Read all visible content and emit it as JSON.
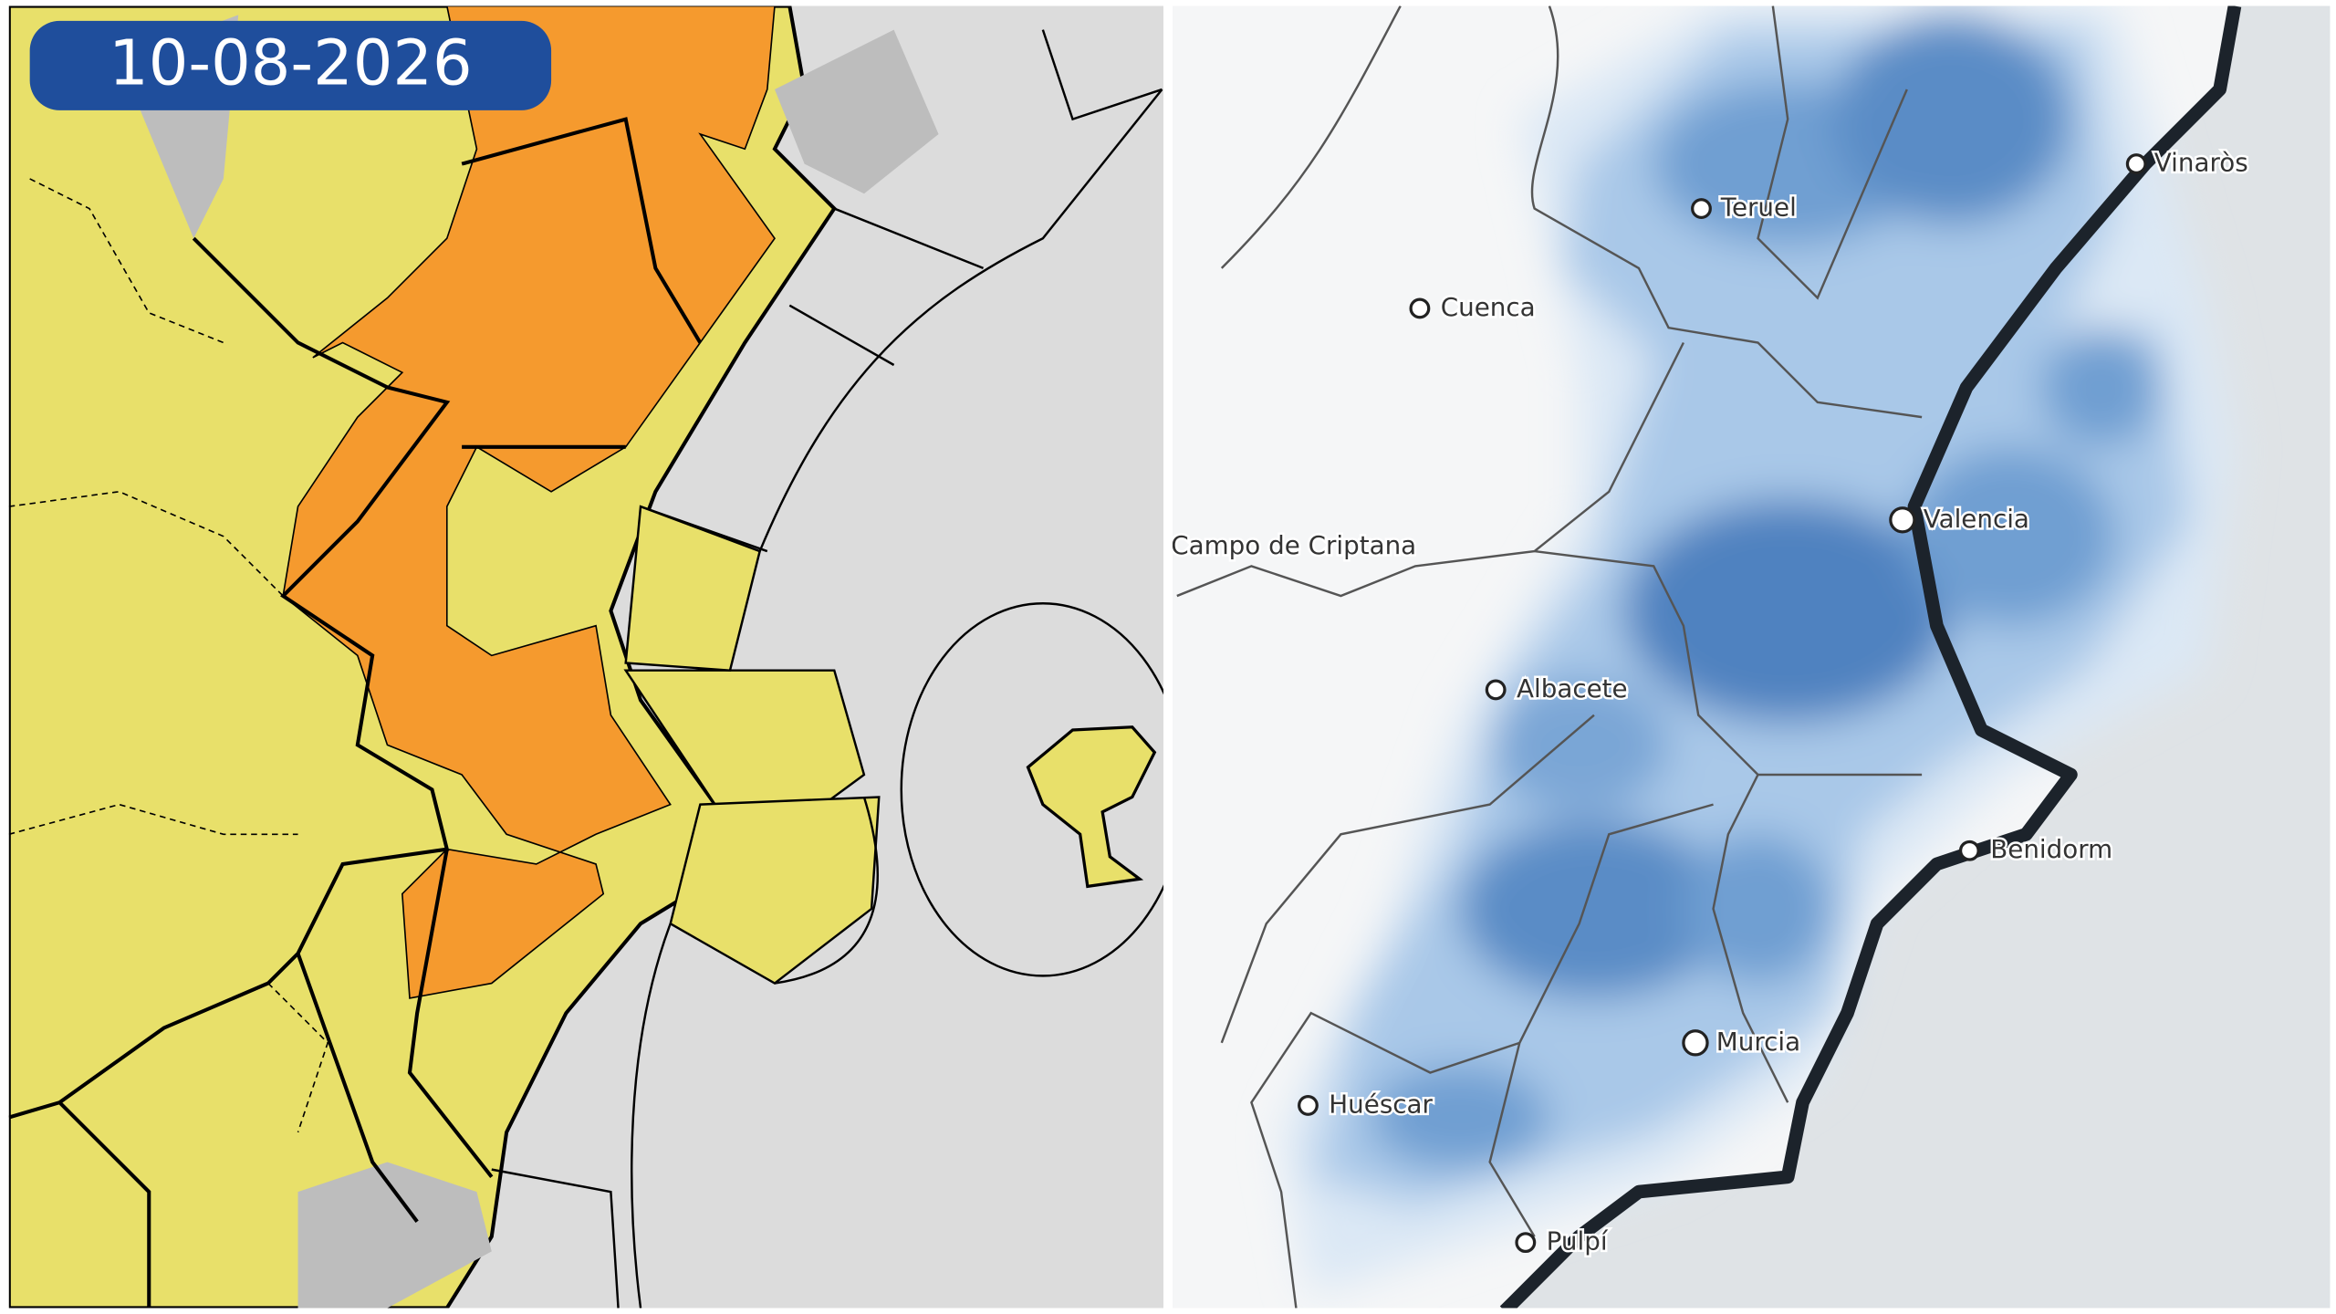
{
  "badge": {
    "date": "10-08-2026"
  },
  "right_map": {
    "cities": [
      {
        "label": "Vinaròs"
      },
      {
        "label": "Teruel"
      },
      {
        "label": "Cuenca"
      },
      {
        "label": "Campo de Criptana"
      },
      {
        "label": "Valencia"
      },
      {
        "label": "Albacete"
      },
      {
        "label": "Benidorm"
      },
      {
        "label": "Murcia"
      },
      {
        "label": "Huéscar"
      },
      {
        "label": "Pulpí"
      }
    ]
  }
}
